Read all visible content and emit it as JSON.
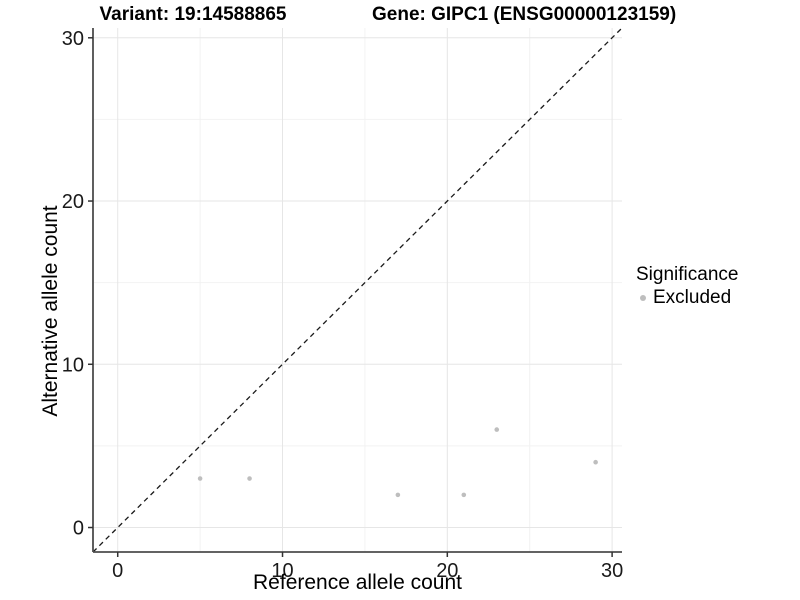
{
  "chart_data": {
    "type": "scatter",
    "titles": {
      "left": "Variant: 19:14588865",
      "right": "Gene: GIPC1 (ENSG00000123159)"
    },
    "xlabel": "Reference allele count",
    "ylabel": "Alternative allele count",
    "xlim": [
      -1.5,
      30.6
    ],
    "ylim": [
      -1.5,
      30.6
    ],
    "xticks": [
      0,
      10,
      20,
      30
    ],
    "yticks": [
      0,
      10,
      20,
      30
    ],
    "xminor": [
      5,
      15,
      25
    ],
    "yminor": [
      5,
      15,
      25
    ],
    "grid": "major+minor",
    "identity_line": {
      "style": "dashed",
      "equation": "y = x"
    },
    "series": [
      {
        "name": "Excluded",
        "color": "#bebebe",
        "points": [
          {
            "x": 5,
            "y": 3
          },
          {
            "x": 8,
            "y": 3
          },
          {
            "x": 17,
            "y": 2
          },
          {
            "x": 21,
            "y": 2
          },
          {
            "x": 23,
            "y": 6
          },
          {
            "x": 29,
            "y": 4
          }
        ]
      }
    ],
    "legend": {
      "title": "Significance",
      "position": "right-center",
      "items": [
        {
          "label": "Excluded",
          "color": "#bebebe",
          "marker": "circle"
        }
      ]
    },
    "style": {
      "background": "#ffffff",
      "grid_major": "#e6e6e6",
      "grid_minor": "#f2f2f2",
      "axis_line": "#4d4d4d",
      "tick_color": "#333333",
      "tick_text_color": "#1a1a1a",
      "identity_color": "#1a1a1a",
      "point_radius": 2.3
    }
  }
}
